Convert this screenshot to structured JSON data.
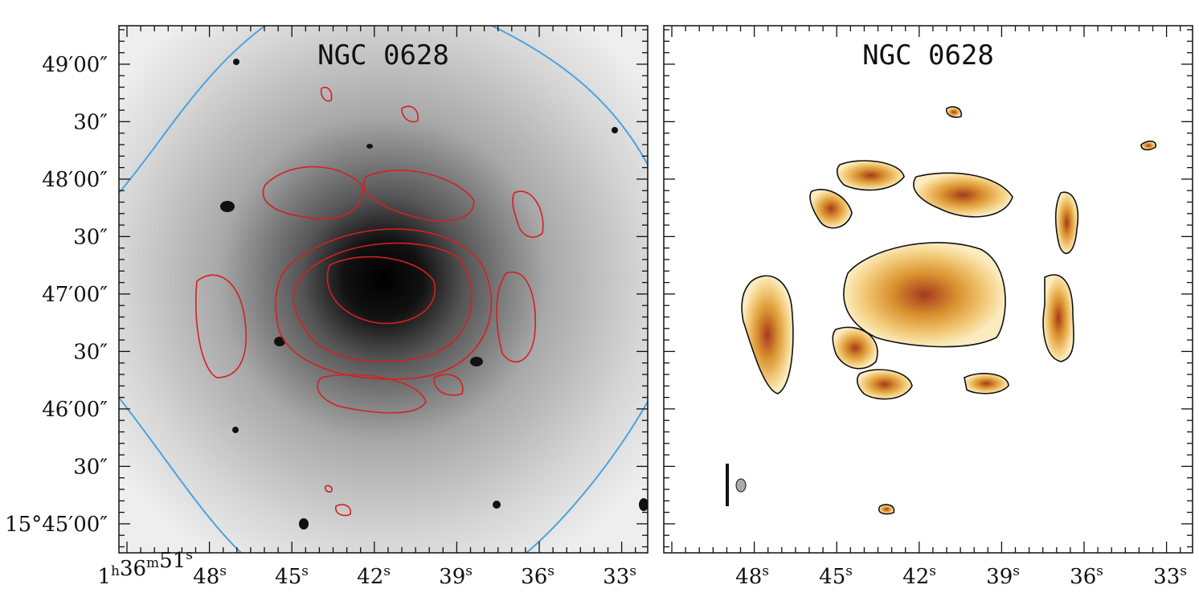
{
  "panels": [
    {
      "title": "NGC 0628",
      "x_labels": [
        [
          {
            "num": "1",
            "unit": "h"
          },
          {
            "num": "36",
            "unit": "m"
          },
          {
            "num": "51",
            "unit": "s"
          }
        ],
        [
          {
            "num": "48",
            "unit": "s"
          }
        ],
        [
          {
            "num": "45",
            "unit": "s"
          }
        ],
        [
          {
            "num": "42",
            "unit": "s"
          }
        ],
        [
          {
            "num": "39",
            "unit": "s"
          }
        ],
        [
          {
            "num": "36",
            "unit": "s"
          }
        ],
        [
          {
            "num": "33",
            "unit": "s"
          }
        ]
      ],
      "y_labels": [
        "49′00″",
        "30″",
        "48′00″",
        "30″",
        "47′00″",
        "30″",
        "46′00″",
        "30″",
        "15°45′00″"
      ]
    },
    {
      "title": "NGC 0628",
      "x_labels": [
        [
          {
            "num": "48",
            "unit": "s"
          }
        ],
        [
          {
            "num": "45",
            "unit": "s"
          }
        ],
        [
          {
            "num": "42",
            "unit": "s"
          }
        ],
        [
          {
            "num": "39",
            "unit": "s"
          }
        ],
        [
          {
            "num": "36",
            "unit": "s"
          }
        ],
        [
          {
            "num": "33",
            "unit": "s"
          }
        ]
      ]
    }
  ]
}
